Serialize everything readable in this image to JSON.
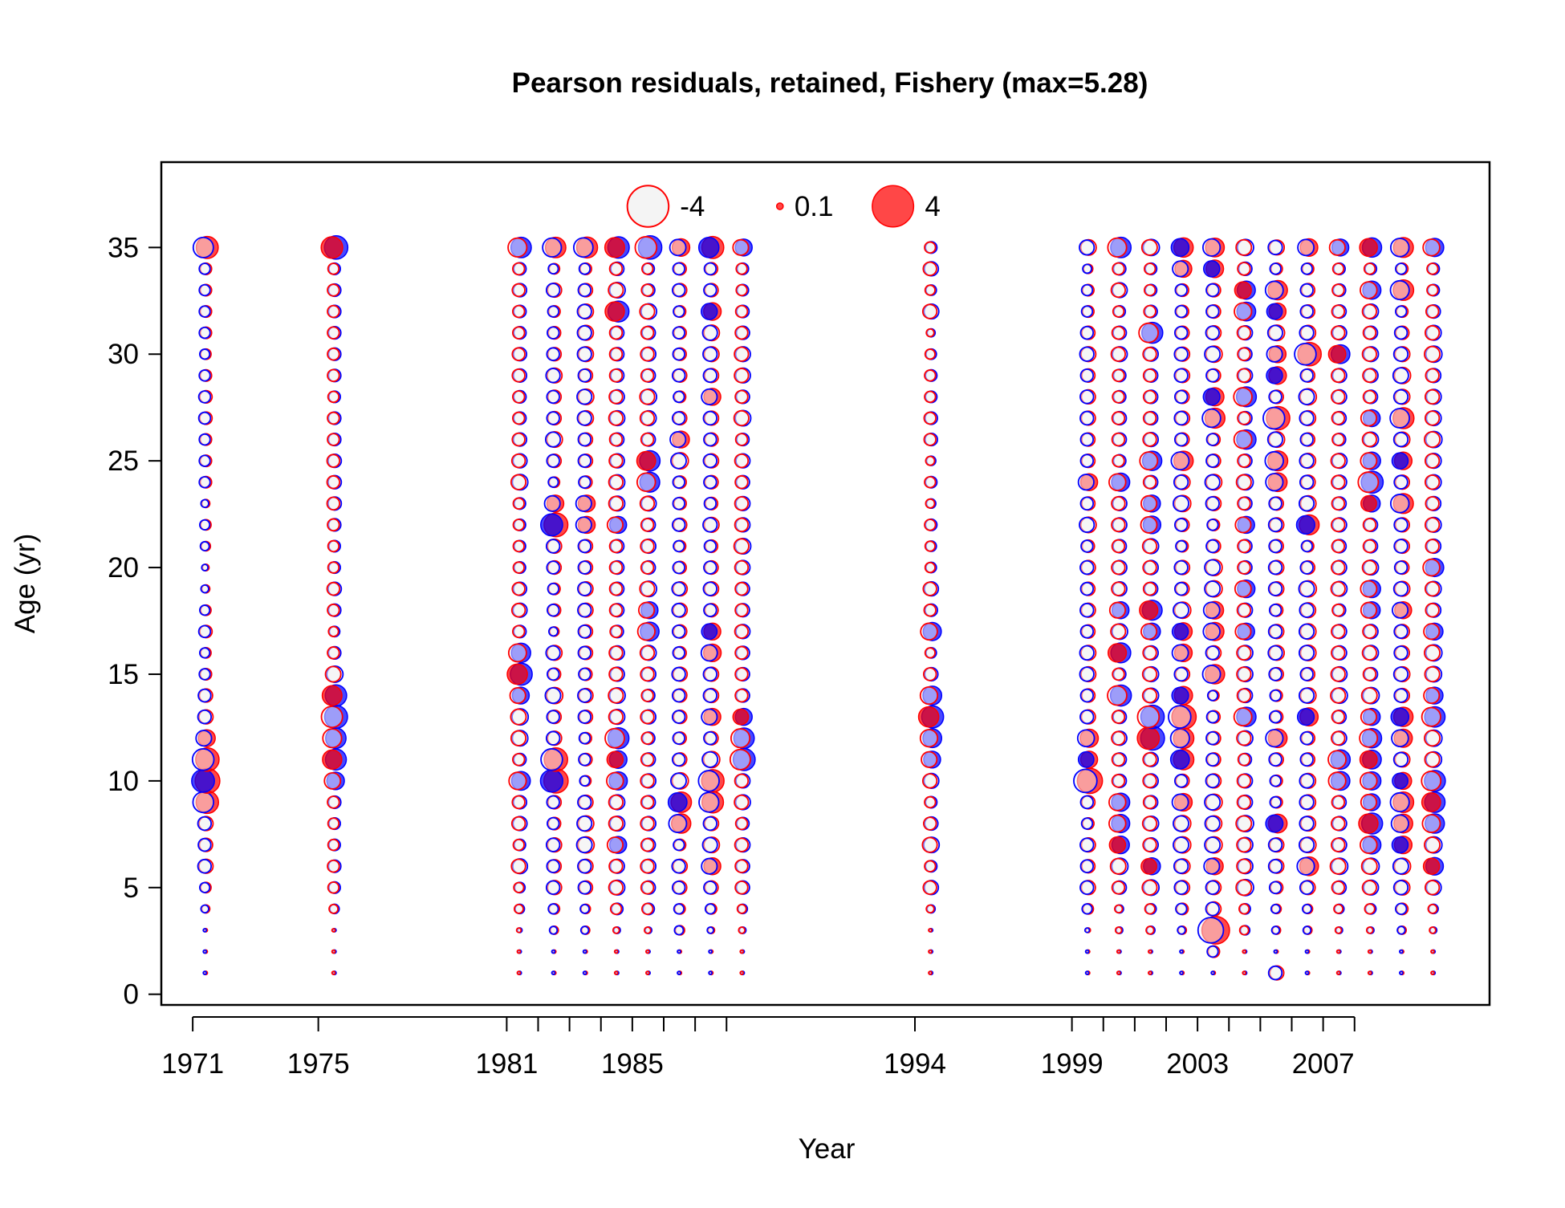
{
  "chart_data": {
    "type": "scatter",
    "title": "Pearson residuals, retained, Fishery (max=5.28)",
    "xlabel": "Year",
    "ylabel": "Age (yr)",
    "xlim": [
      1970,
      2012.3
    ],
    "ylim": [
      -0.5,
      39
    ],
    "x_tick_labels": [
      "1971",
      "1975",
      "1981",
      "1985",
      "1994",
      "1999",
      "2003",
      "2007"
    ],
    "x_tick_marks": [
      1971,
      1975,
      1981,
      1982,
      1983,
      1984,
      1985,
      1986,
      1987,
      1988,
      1994,
      1999,
      2000,
      2001,
      2002,
      2003,
      2004,
      2005,
      2006,
      2007,
      2008
    ],
    "y_tick_labels": [
      "0",
      "5",
      "10",
      "15",
      "20",
      "25",
      "30",
      "35"
    ],
    "y_ticks": [
      0,
      5,
      10,
      15,
      20,
      25,
      30,
      35
    ],
    "grid": false,
    "legend_position": "top",
    "legend": [
      {
        "label": "-4",
        "value": -4
      },
      {
        "label": "0.1",
        "value": 0.1
      },
      {
        "label": "4",
        "value": 4
      }
    ],
    "colors": {
      "positive_fill": "#ff0000",
      "negative_fill": "#0000ff",
      "positive_stroke": "#ff0000",
      "negative_stroke": "#0000ff",
      "empty_fill": "#f4f4f4",
      "axis": "#000000"
    },
    "ages": [
      1,
      2,
      3,
      4,
      5,
      6,
      7,
      8,
      9,
      10,
      11,
      12,
      13,
      14,
      15,
      16,
      17,
      18,
      19,
      20,
      21,
      22,
      23,
      24,
      25,
      26,
      27,
      28,
      29,
      30,
      31,
      32,
      33,
      34,
      35
    ],
    "series": [
      {
        "name": "retained",
        "obs": "red",
        "exp": "blue",
        "year": 1971.4,
        "values": [
          0.05,
          0.05,
          0.05,
          0.3,
          0.5,
          0.9,
          0.8,
          0.9,
          2.3,
          2.8,
          2.5,
          1.3,
          0.9,
          0.8,
          0.6,
          0.5,
          0.7,
          0.5,
          0.3,
          0.2,
          0.4,
          0.5,
          0.3,
          0.6,
          0.6,
          0.6,
          0.7,
          0.7,
          0.6,
          0.5,
          0.6,
          0.6,
          0.6,
          0.6,
          2.2
        ]
      },
      {
        "name": "retained",
        "obs": "blue",
        "exp": "red",
        "year": 1975.5,
        "values": [
          0.05,
          0.05,
          0.05,
          0.4,
          0.6,
          0.7,
          0.6,
          0.6,
          0.7,
          1.4,
          2.0,
          1.9,
          2.4,
          2.1,
          1.2,
          0.7,
          0.5,
          0.7,
          0.8,
          0.6,
          0.6,
          0.7,
          0.8,
          0.8,
          0.8,
          0.7,
          0.7,
          0.6,
          0.7,
          0.7,
          0.7,
          0.7,
          0.7,
          0.6,
          2.5
        ]
      },
      {
        "name": "retained",
        "obs": "blue",
        "exp": "red",
        "year": 1981.4,
        "values": [
          0.05,
          0.05,
          0.1,
          0.4,
          0.5,
          1.0,
          0.6,
          0.9,
          0.8,
          1.6,
          0.7,
          1.1,
          1.2,
          1.3,
          2.2,
          1.7,
          0.7,
          0.9,
          0.8,
          0.6,
          0.6,
          0.6,
          0.6,
          1.1,
          0.9,
          0.8,
          0.7,
          0.7,
          0.8,
          0.8,
          0.7,
          0.7,
          0.8,
          0.7,
          1.9
        ]
      },
      {
        "name": "retained",
        "obs": "red",
        "exp": "blue",
        "year": 1982.5,
        "values": [
          0.05,
          0.05,
          0.3,
          0.5,
          0.9,
          0.8,
          0.9,
          0.7,
          0.8,
          2.7,
          2.5,
          0.9,
          0.8,
          1.2,
          0.7,
          1.0,
          0.4,
          0.7,
          0.6,
          0.8,
          0.9,
          2.6,
          1.3,
          0.5,
          0.8,
          1.1,
          0.8,
          0.8,
          1.0,
          0.8,
          0.7,
          0.6,
          0.9,
          0.5,
          1.9
        ]
      },
      {
        "name": "retained",
        "obs": "red",
        "exp": "blue",
        "year": 1983.5,
        "values": [
          0.05,
          0.05,
          0.3,
          0.4,
          0.8,
          0.9,
          1.2,
          1.1,
          0.9,
          0.5,
          0.7,
          0.6,
          0.8,
          0.9,
          0.7,
          0.8,
          0.8,
          0.9,
          0.9,
          0.8,
          0.8,
          1.3,
          1.3,
          0.7,
          0.8,
          0.8,
          1.0,
          1.1,
          0.8,
          1.0,
          1.0,
          1.0,
          0.8,
          0.6,
          2.0
        ]
      },
      {
        "name": "retained",
        "obs": "blue",
        "exp": "red",
        "year": 1984.5,
        "values": [
          0.05,
          0.05,
          0.2,
          0.6,
          1.0,
          0.9,
          1.3,
          1.0,
          1.0,
          1.5,
          1.4,
          2.0,
          1.0,
          1.1,
          0.9,
          0.9,
          0.7,
          0.8,
          0.8,
          0.8,
          0.8,
          1.3,
          1.0,
          1.0,
          0.9,
          0.8,
          1.0,
          0.9,
          0.8,
          0.8,
          0.8,
          2.0,
          1.1,
          0.8,
          2.1
        ]
      },
      {
        "name": "retained",
        "obs": "blue",
        "exp": "red",
        "year": 1985.5,
        "values": [
          0.05,
          0.05,
          0.2,
          0.6,
          0.8,
          0.9,
          0.8,
          0.9,
          0.8,
          0.9,
          0.8,
          0.7,
          0.9,
          0.7,
          0.9,
          1.0,
          1.6,
          1.3,
          1.1,
          0.8,
          0.9,
          0.8,
          1.0,
          1.8,
          1.9,
          0.8,
          1.0,
          1.1,
          0.8,
          0.9,
          0.8,
          1.1,
          0.7,
          0.6,
          2.5
        ]
      },
      {
        "name": "retained",
        "obs": "red",
        "exp": "blue",
        "year": 1986.5,
        "values": [
          0.05,
          0.05,
          0.4,
          0.5,
          0.8,
          0.9,
          0.6,
          1.7,
          1.9,
          1.2,
          0.8,
          0.7,
          0.8,
          0.8,
          0.9,
          0.7,
          0.8,
          0.9,
          0.9,
          0.7,
          0.6,
          0.8,
          0.7,
          0.7,
          1.2,
          1.3,
          0.8,
          0.6,
          0.8,
          0.7,
          0.7,
          0.6,
          0.8,
          0.7,
          1.4
        ]
      },
      {
        "name": "retained",
        "obs": "red",
        "exp": "blue",
        "year": 1987.5,
        "values": [
          0.05,
          0.05,
          0.2,
          0.5,
          0.8,
          1.3,
          1.1,
          0.9,
          2.1,
          2.3,
          1.2,
          0.8,
          1.3,
          0.9,
          0.9,
          1.4,
          1.3,
          0.8,
          0.9,
          0.8,
          0.7,
          1.0,
          0.7,
          0.8,
          0.9,
          0.8,
          0.9,
          1.3,
          0.9,
          1.0,
          1.1,
          1.4,
          0.8,
          0.7,
          2.2
        ]
      },
      {
        "name": "retained",
        "obs": "blue",
        "exp": "red",
        "year": 1988.5,
        "values": [
          0.05,
          0.05,
          0.2,
          0.4,
          0.8,
          0.8,
          0.9,
          0.7,
          1.0,
          0.9,
          2.2,
          1.9,
          1.3,
          0.8,
          0.8,
          0.8,
          0.9,
          0.8,
          0.8,
          0.9,
          1.1,
          0.9,
          0.9,
          0.8,
          0.9,
          0.7,
          1.1,
          0.8,
          1.0,
          1.0,
          0.8,
          0.7,
          0.6,
          0.6,
          1.3
        ]
      },
      {
        "name": "retained",
        "obs": "blue",
        "exp": "red",
        "year": 1994.5,
        "values": [
          0.05,
          0.05,
          0.05,
          0.3,
          0.9,
          0.6,
          1.1,
          0.8,
          0.6,
          1.0,
          1.3,
          1.6,
          2.2,
          1.6,
          0.8,
          0.5,
          1.5,
          0.7,
          0.9,
          0.5,
          0.5,
          0.6,
          0.4,
          0.6,
          0.4,
          0.7,
          0.7,
          0.6,
          0.6,
          0.5,
          0.3,
          1.0,
          0.5,
          0.9,
          0.6
        ]
      },
      {
        "name": "retained",
        "obs": "red",
        "exp": "blue",
        "year": 1999.5,
        "values": [
          0.05,
          0.05,
          0.1,
          0.5,
          0.9,
          0.8,
          0.9,
          0.6,
          0.8,
          2.9,
          1.3,
          1.5,
          0.9,
          0.8,
          1.0,
          1.0,
          0.8,
          0.9,
          0.8,
          0.9,
          0.7,
          1.1,
          0.8,
          1.3,
          0.8,
          0.8,
          0.9,
          0.9,
          0.8,
          1.0,
          0.8,
          0.6,
          0.6,
          0.4,
          1.1
        ]
      },
      {
        "name": "retained",
        "obs": "blue",
        "exp": "red",
        "year": 2000.5,
        "values": [
          0.05,
          0.05,
          0.2,
          0.3,
          0.8,
          1.2,
          1.4,
          1.5,
          1.5,
          0.8,
          0.8,
          0.9,
          0.8,
          2.0,
          0.7,
          1.8,
          1.1,
          1.3,
          0.9,
          0.9,
          0.8,
          0.9,
          0.9,
          1.5,
          0.7,
          0.8,
          0.8,
          0.7,
          0.7,
          1.0,
          0.8,
          0.6,
          1.0,
          0.7,
          1.9
        ]
      },
      {
        "name": "retained",
        "obs": "blue",
        "exp": "red",
        "year": 2001.5,
        "values": [
          0.05,
          0.05,
          0.3,
          0.5,
          1.1,
          1.3,
          0.9,
          1.0,
          0.8,
          0.9,
          0.9,
          2.6,
          2.5,
          1.0,
          1.0,
          0.9,
          1.3,
          1.8,
          0.8,
          0.9,
          1.0,
          1.4,
          1.3,
          0.8,
          1.7,
          0.9,
          0.8,
          0.8,
          0.8,
          0.9,
          2.0,
          0.7,
          0.6,
          0.6,
          1.2
        ]
      },
      {
        "name": "retained",
        "obs": "red",
        "exp": "blue",
        "year": 2002.5,
        "values": [
          0.05,
          0.05,
          0.3,
          0.6,
          0.9,
          1.0,
          1.2,
          1.2,
          1.4,
          0.8,
          1.9,
          1.9,
          2.7,
          1.5,
          0.9,
          1.4,
          1.4,
          1.2,
          0.8,
          0.9,
          0.6,
          0.8,
          1.2,
          1.0,
          1.7,
          0.8,
          0.9,
          0.8,
          0.9,
          0.9,
          0.8,
          0.7,
          0.7,
          1.3,
          1.7
        ]
      },
      {
        "name": "retained",
        "obs": "red",
        "exp": "blue",
        "year": 2003.5,
        "values": [
          0.05,
          0.6,
          3.5,
          0.9,
          0.9,
          1.3,
          1.2,
          1.1,
          1.2,
          0.9,
          0.8,
          0.8,
          0.7,
          0.5,
          1.7,
          0.9,
          1.5,
          1.4,
          1.2,
          1.2,
          0.8,
          0.6,
          0.9,
          1.1,
          0.8,
          0.7,
          1.8,
          1.5,
          0.8,
          1.2,
          0.9,
          0.8,
          0.8,
          1.4,
          1.6
        ]
      },
      {
        "name": "retained",
        "obs": "blue",
        "exp": "red",
        "year": 2004.5,
        "values": [
          0.05,
          0.05,
          0.4,
          0.5,
          1.2,
          1.0,
          1.0,
          1.2,
          0.9,
          0.9,
          0.7,
          1.0,
          1.7,
          0.9,
          1.0,
          1.0,
          1.3,
          0.9,
          1.4,
          0.8,
          0.8,
          1.3,
          0.8,
          1.1,
          0.8,
          1.7,
          0.8,
          1.8,
          0.9,
          0.8,
          0.9,
          1.6,
          1.5,
          0.8,
          1.2
        ]
      },
      {
        "name": "retained",
        "obs": "red",
        "exp": "blue",
        "year": 2005.5,
        "values": [
          0.9,
          0.05,
          0.3,
          0.4,
          0.7,
          0.9,
          0.9,
          1.6,
          0.6,
          0.6,
          0.8,
          1.6,
          0.7,
          0.6,
          0.8,
          1.0,
          0.9,
          0.7,
          0.9,
          0.9,
          0.8,
          0.9,
          0.8,
          1.6,
          1.8,
          1.1,
          2.5,
          0.8,
          1.4,
          1.3,
          1.1,
          1.3,
          1.7,
          0.6,
          1.0
        ]
      },
      {
        "name": "retained",
        "obs": "red",
        "exp": "blue",
        "year": 2006.5,
        "values": [
          0.05,
          0.05,
          0.3,
          0.4,
          0.9,
          1.6,
          1.1,
          1.0,
          1.0,
          1.0,
          0.8,
          0.8,
          1.5,
          1.1,
          0.8,
          1.1,
          1.1,
          1.0,
          1.2,
          0.8,
          0.6,
          1.8,
          1.1,
          0.9,
          1.0,
          0.8,
          1.0,
          1.2,
          0.8,
          2.5,
          1.0,
          0.8,
          0.8,
          0.6,
          1.4
        ]
      },
      {
        "name": "retained",
        "obs": "blue",
        "exp": "red",
        "year": 2007.5,
        "values": [
          0.05,
          0.05,
          0.2,
          0.4,
          0.8,
          1.2,
          0.9,
          0.9,
          0.8,
          1.6,
          1.7,
          0.9,
          0.8,
          1.1,
          1.0,
          0.9,
          0.9,
          0.7,
          1.0,
          0.9,
          0.8,
          0.9,
          0.8,
          0.9,
          1.0,
          0.7,
          0.8,
          0.9,
          0.9,
          1.6,
          0.9,
          0.8,
          0.7,
          0.6,
          1.3
        ]
      },
      {
        "name": "retained",
        "obs": "blue",
        "exp": "red",
        "year": 2008.5,
        "values": [
          0.05,
          0.05,
          0.2,
          0.5,
          1.0,
          1.2,
          1.5,
          2.0,
          1.3,
          1.5,
          1.6,
          1.7,
          1.3,
          1.2,
          0.8,
          1.0,
          0.9,
          1.3,
          1.4,
          1.0,
          0.8,
          0.8,
          1.3,
          2.2,
          1.4,
          1.0,
          1.3,
          0.8,
          0.9,
          1.0,
          0.8,
          1.0,
          1.5,
          0.6,
          1.7
        ]
      },
      {
        "name": "retained",
        "obs": "red",
        "exp": "blue",
        "year": 2009.5,
        "values": [
          0.05,
          0.05,
          0.3,
          0.6,
          1.0,
          1.2,
          1.4,
          1.6,
          1.9,
          1.3,
          1.0,
          1.5,
          1.7,
          0.9,
          1.0,
          0.9,
          0.9,
          1.3,
          1.0,
          0.8,
          0.9,
          0.9,
          1.8,
          0.9,
          1.4,
          1.0,
          2.0,
          1.0,
          1.2,
          1.0,
          0.8,
          0.6,
          1.9,
          0.6,
          1.8
        ]
      },
      {
        "name": "retained",
        "obs": "blue",
        "exp": "red",
        "year": 2010.5,
        "values": [
          0.05,
          0.05,
          0.2,
          0.4,
          1.0,
          1.4,
          1.2,
          1.7,
          1.9,
          2.0,
          1.1,
          1.2,
          1.9,
          1.3,
          1.1,
          1.2,
          1.3,
          0.9,
          1.0,
          1.5,
          0.9,
          1.0,
          0.9,
          1.0,
          1.0,
          1.2,
          1.0,
          1.0,
          0.9,
          1.2,
          1.0,
          0.8,
          0.6,
          0.6,
          1.5
        ]
      }
    ]
  }
}
